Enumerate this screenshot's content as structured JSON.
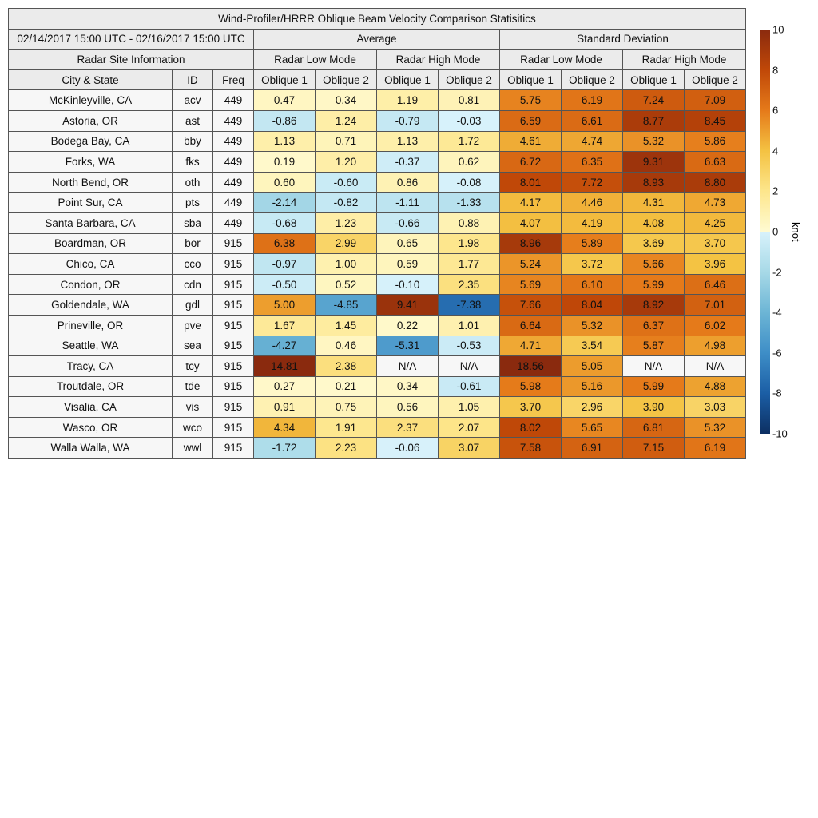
{
  "chart_data": {
    "type": "heatmap",
    "title": "Wind-Profiler/HRRR Oblique Beam Velocity Comparison Statisitics",
    "period": "02/14/2017 15:00 UTC - 02/16/2017 15:00 UTC",
    "groups": [
      "Average",
      "Standard Deviation"
    ],
    "modes": [
      "Radar Low Mode",
      "Radar High Mode",
      "Radar Low Mode",
      "Radar High Mode"
    ],
    "site_header": "Radar Site Information",
    "columns": [
      "City & State",
      "ID",
      "Freq",
      "Oblique 1",
      "Oblique 2",
      "Oblique 1",
      "Oblique 2",
      "Oblique 1",
      "Oblique 2",
      "Oblique 1",
      "Oblique 2"
    ],
    "rows": [
      [
        "McKinleyville, CA",
        "acv",
        "449",
        "0.47",
        "0.34",
        "1.19",
        "0.81",
        "5.75",
        "6.19",
        "7.24",
        "7.09"
      ],
      [
        "Astoria, OR",
        "ast",
        "449",
        "-0.86",
        "1.24",
        "-0.79",
        "-0.03",
        "6.59",
        "6.61",
        "8.77",
        "8.45"
      ],
      [
        "Bodega Bay, CA",
        "bby",
        "449",
        "1.13",
        "0.71",
        "1.13",
        "1.72",
        "4.61",
        "4.74",
        "5.32",
        "5.86"
      ],
      [
        "Forks, WA",
        "fks",
        "449",
        "0.19",
        "1.20",
        "-0.37",
        "0.62",
        "6.72",
        "6.35",
        "9.31",
        "6.63"
      ],
      [
        "North Bend, OR",
        "oth",
        "449",
        "0.60",
        "-0.60",
        "0.86",
        "-0.08",
        "8.01",
        "7.72",
        "8.93",
        "8.80"
      ],
      [
        "Point Sur, CA",
        "pts",
        "449",
        "-2.14",
        "-0.82",
        "-1.11",
        "-1.33",
        "4.17",
        "4.46",
        "4.31",
        "4.73"
      ],
      [
        "Santa Barbara, CA",
        "sba",
        "449",
        "-0.68",
        "1.23",
        "-0.66",
        "0.88",
        "4.07",
        "4.19",
        "4.08",
        "4.25"
      ],
      [
        "Boardman, OR",
        "bor",
        "915",
        "6.38",
        "2.99",
        "0.65",
        "1.98",
        "8.96",
        "5.89",
        "3.69",
        "3.70"
      ],
      [
        "Chico, CA",
        "cco",
        "915",
        "-0.97",
        "1.00",
        "0.59",
        "1.77",
        "5.24",
        "3.72",
        "5.66",
        "3.96"
      ],
      [
        "Condon, OR",
        "cdn",
        "915",
        "-0.50",
        "0.52",
        "-0.10",
        "2.35",
        "5.69",
        "6.10",
        "5.99",
        "6.46"
      ],
      [
        "Goldendale, WA",
        "gdl",
        "915",
        "5.00",
        "-4.85",
        "9.41",
        "-7.38",
        "7.66",
        "8.04",
        "8.92",
        "7.01"
      ],
      [
        "Prineville, OR",
        "pve",
        "915",
        "1.67",
        "1.45",
        "0.22",
        "1.01",
        "6.64",
        "5.32",
        "6.37",
        "6.02"
      ],
      [
        "Seattle, WA",
        "sea",
        "915",
        "-4.27",
        "0.46",
        "-5.31",
        "-0.53",
        "4.71",
        "3.54",
        "5.87",
        "4.98"
      ],
      [
        "Tracy, CA",
        "tcy",
        "915",
        "14.81",
        "2.38",
        "N/A",
        "N/A",
        "18.56",
        "5.05",
        "N/A",
        "N/A"
      ],
      [
        "Troutdale, OR",
        "tde",
        "915",
        "0.27",
        "0.21",
        "0.34",
        "-0.61",
        "5.98",
        "5.16",
        "5.99",
        "4.88"
      ],
      [
        "Visalia, CA",
        "vis",
        "915",
        "0.91",
        "0.75",
        "0.56",
        "1.05",
        "3.70",
        "2.96",
        "3.90",
        "3.03"
      ],
      [
        "Wasco, OR",
        "wco",
        "915",
        "4.34",
        "1.91",
        "2.37",
        "2.07",
        "8.02",
        "5.65",
        "6.81",
        "5.32"
      ],
      [
        "Walla Walla, WA",
        "wwl",
        "915",
        "-1.72",
        "2.23",
        "-0.06",
        "3.07",
        "7.58",
        "6.91",
        "7.15",
        "6.19"
      ]
    ],
    "colorbar": {
      "label": "knot",
      "range": [
        -10,
        10
      ],
      "ticks": [
        "10",
        "8",
        "6",
        "4",
        "2",
        "0",
        "-2",
        "-4",
        "-6",
        "-8",
        "-10"
      ],
      "pos_colors": [
        "#fffbd2",
        "#fde68c",
        "#f4c242",
        "#e57a1a",
        "#c04808",
        "#8a2a0e"
      ],
      "neg_colors": [
        "#d8f2fb",
        "#a7d9e7",
        "#6cb5d5",
        "#3e8ec7",
        "#1b5ea5",
        "#0c2f62"
      ],
      "na_color": "#f7f7f7"
    }
  }
}
